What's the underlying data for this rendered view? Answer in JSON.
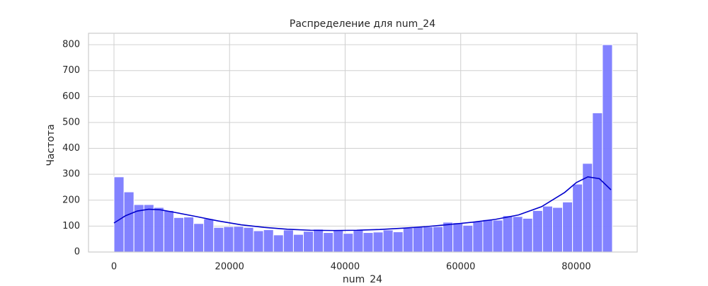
{
  "chart_data": {
    "type": "histogram",
    "title": "Распределение для num_24",
    "x_label": "num_24",
    "y_label": "Частота",
    "bins": [
      0,
      1725,
      3450,
      5175,
      6900,
      8625,
      10350,
      12075,
      13800,
      15525,
      17250,
      18975,
      20700,
      22425,
      24150,
      25875,
      27600,
      29325,
      31050,
      32775,
      34500,
      36225,
      37950,
      39675,
      41400,
      43125,
      44850,
      46575,
      48300,
      50025,
      51750,
      53475,
      55200,
      56925,
      58650,
      60375,
      62100,
      63825,
      65550,
      67275,
      69000,
      70725,
      72450,
      74175,
      75900,
      77625,
      79350,
      81075,
      82800,
      84525,
      86250
    ],
    "values": [
      290,
      232,
      183,
      183,
      172,
      160,
      133,
      135,
      110,
      128,
      95,
      98,
      99,
      95,
      82,
      86,
      66,
      85,
      68,
      80,
      88,
      75,
      85,
      72,
      85,
      75,
      77,
      85,
      78,
      93,
      98,
      97,
      98,
      115,
      113,
      103,
      118,
      125,
      123,
      140,
      137,
      130,
      160,
      177,
      172,
      193,
      262,
      342,
      537,
      800
    ],
    "color": "#7b7bff",
    "kde": {
      "color": "#0000cc",
      "x": [
        0,
        2000,
        4000,
        6000,
        8000,
        10000,
        14000,
        18000,
        22000,
        26000,
        30000,
        34000,
        38000,
        42000,
        46000,
        50000,
        54000,
        58000,
        62000,
        66000,
        70000,
        74000,
        78000,
        80000,
        82000,
        84000,
        86000
      ],
      "y": [
        112,
        140,
        158,
        165,
        163,
        155,
        138,
        120,
        105,
        95,
        88,
        84,
        83,
        84,
        87,
        92,
        98,
        106,
        115,
        126,
        143,
        175,
        230,
        268,
        290,
        283,
        240
      ]
    },
    "xlim": [
      -4410,
      90540
    ],
    "ylim": [
      0,
      844
    ],
    "xticks": [
      0,
      20000,
      40000,
      60000,
      80000
    ],
    "yticks": [
      0,
      100,
      200,
      300,
      400,
      500,
      600,
      700,
      800
    ],
    "grid": true
  }
}
